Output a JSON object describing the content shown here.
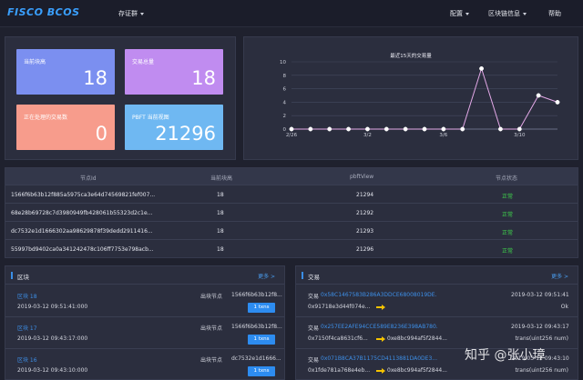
{
  "header": {
    "logo": "FISCO BCOS",
    "nav_cert": "存证群",
    "nav_config": "配置",
    "nav_blockinfo": "区块链信息",
    "nav_help": "帮助"
  },
  "stats": {
    "current_block_label": "当前块高",
    "current_block_value": "18",
    "tx_total_label": "交易总量",
    "tx_total_value": "18",
    "pending_label": "正在处理的交易数",
    "pending_value": "0",
    "pbft_label": "PBFT 当前视图",
    "pbft_value": "21296",
    "colors": {
      "blue": "#7b8ff0",
      "purple": "#c08cf0",
      "salmon": "#f79c8c",
      "sky": "#6fb8f2"
    }
  },
  "chart_data": {
    "type": "line",
    "title": "最近15天的交易量",
    "categories": [
      "2/26",
      "2/27",
      "2/28",
      "3/1",
      "3/2",
      "3/3",
      "3/4",
      "3/5",
      "3/6",
      "3/7",
      "3/8",
      "3/9",
      "3/10",
      "3/11",
      "3/12"
    ],
    "tick_labels": [
      "2/26",
      "3/2",
      "3/6",
      "3/10"
    ],
    "values": [
      0,
      0,
      0,
      0,
      0,
      0,
      0,
      0,
      0,
      0,
      9,
      0,
      0,
      5,
      4
    ],
    "ylim": [
      0,
      10
    ],
    "yticks": [
      0,
      2,
      4,
      6,
      8,
      10
    ],
    "line_color": "#e4a9e8",
    "grid": true
  },
  "table": {
    "headers": [
      "节点Id",
      "当前块高",
      "pbftView",
      "节点状态"
    ],
    "rows": [
      {
        "node_id": "1566f6b63b12f885a5975ca3e64d74569821fef007...",
        "block": "18",
        "view": "21294",
        "status": "正常"
      },
      {
        "node_id": "68e28b69728c7d3980949fb428061b55323d2c1e...",
        "block": "18",
        "view": "21292",
        "status": "正常"
      },
      {
        "node_id": "dc7532e1d1666302aa98629878f39dedd2911416...",
        "block": "18",
        "view": "21293",
        "status": "正常"
      },
      {
        "node_id": "55997bd9402ca0a341242478c106ff7753e798acb...",
        "block": "18",
        "view": "21296",
        "status": "正常"
      }
    ]
  },
  "blocks": {
    "title": "区块",
    "more": "更多 >",
    "items": [
      {
        "name": "区块 18",
        "time": "2019-03-12 09:51:41:000",
        "producer_label": "出块节点",
        "producer": "1566f6b63b12f8...",
        "txs": "1 txns"
      },
      {
        "name": "区块 17",
        "time": "2019-03-12 09:43:17:000",
        "producer_label": "出块节点",
        "producer": "1566f6b63b12f8...",
        "txs": "1 txns"
      },
      {
        "name": "区块 16",
        "time": "2019-03-12 09:43:10:000",
        "producer_label": "出块节点",
        "producer": "dc7532e1d1666...",
        "txs": "1 txns"
      }
    ]
  },
  "transactions": {
    "title": "交易",
    "more": "更多 >",
    "items": [
      {
        "label": "交易",
        "hash": "0x58C1467583B286A3DDCE68008019DE...",
        "time": "2019-03-12 09:51:41",
        "from": "0x91718e3d44f074e...",
        "to": "",
        "method": "Ok"
      },
      {
        "label": "交易",
        "hash": "0x257EE2AFE94CCE589E8236E398AB780...",
        "time": "2019-03-12 09:43:17",
        "from": "0x7150f4ca8631cf6...",
        "to": "0xe8bc994af5f2844...",
        "method": "trans(uint256 num)"
      },
      {
        "label": "交易",
        "hash": "0x071B8CA37B1175CD4113881DA0DE3...",
        "time": "2019-03-12 09:43:10",
        "from": "0x1fde781a768e4eb...",
        "to": "0xe8bc994af5f2844...",
        "method": "trans(uint256 num)"
      }
    ]
  },
  "watermark": "知乎 @张小璋"
}
